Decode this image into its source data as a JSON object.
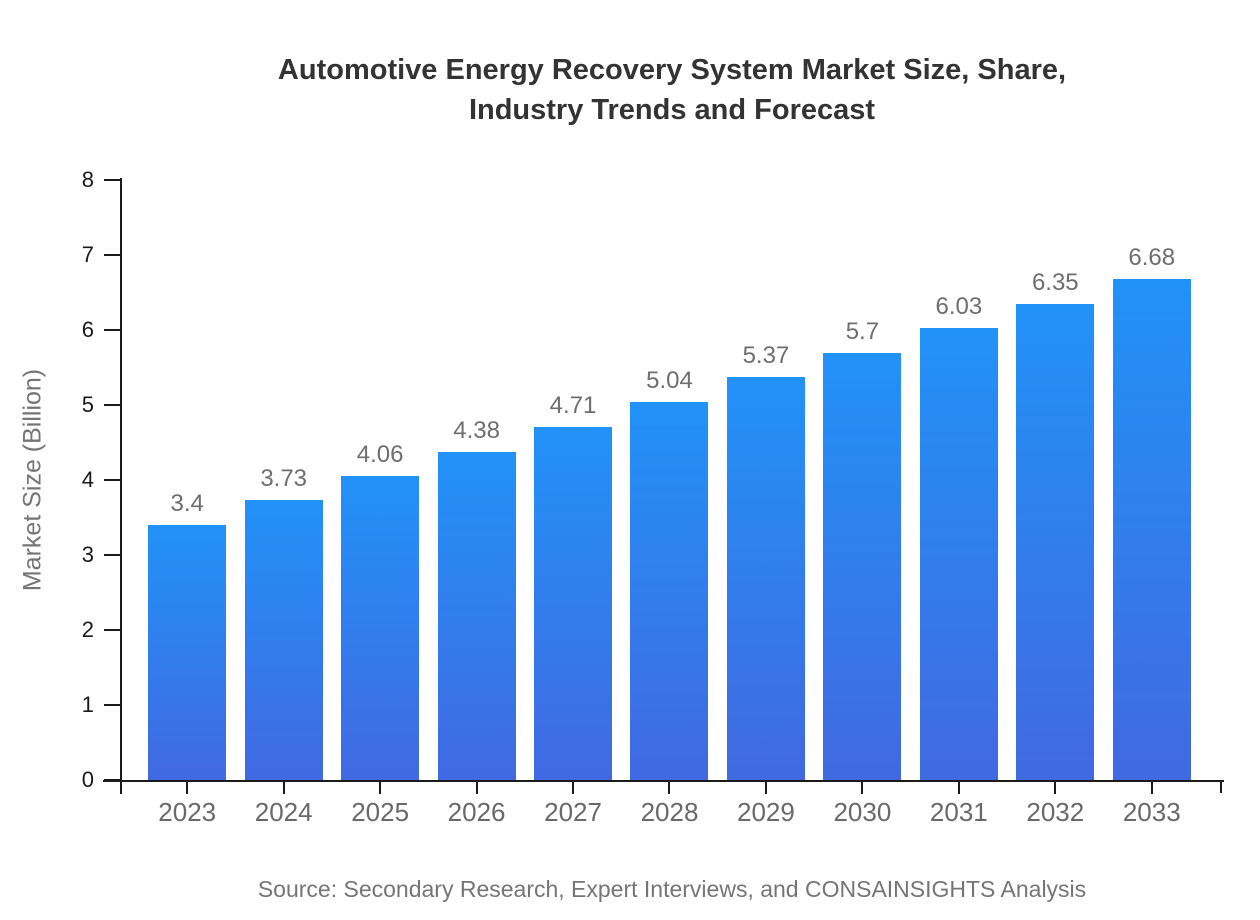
{
  "title": "Automotive Energy Recovery System Market Size, Share,\nIndustry Trends and Forecast",
  "footer": {
    "source": "Source: Secondary Research, Expert Interviews, and CONSAINSIGHTS Analysis"
  },
  "chart_data": {
    "type": "bar",
    "title": "Automotive Energy Recovery System Market Size, Share, Industry Trends and Forecast",
    "categories": [
      "2023",
      "2024",
      "2025",
      "2026",
      "2027",
      "2028",
      "2029",
      "2030",
      "2031",
      "2032",
      "2033"
    ],
    "values": [
      3.4,
      3.73,
      4.06,
      4.38,
      4.71,
      5.04,
      5.37,
      5.7,
      6.03,
      6.35,
      6.68
    ],
    "xlabel": "",
    "ylabel": "Market Size (Billion)",
    "ylim": [
      0,
      8
    ],
    "y_ticks": [
      0,
      1,
      2,
      3,
      4,
      5,
      6,
      7,
      8
    ],
    "grid": false,
    "legend": "none",
    "value_labels_shown": true,
    "colors": {
      "bar_gradient_top": "#2192f8",
      "bar_gradient_bottom": "#4169e1",
      "title_text": "#333333",
      "axis_line": "#1a1a1a",
      "y_tick_text": "#1a1a1a",
      "x_tick_text": "#696969",
      "value_label_text": "#6e6e6e",
      "axis_title_text": "#757575",
      "source_text": "#757575",
      "background": "#ffffff"
    }
  }
}
